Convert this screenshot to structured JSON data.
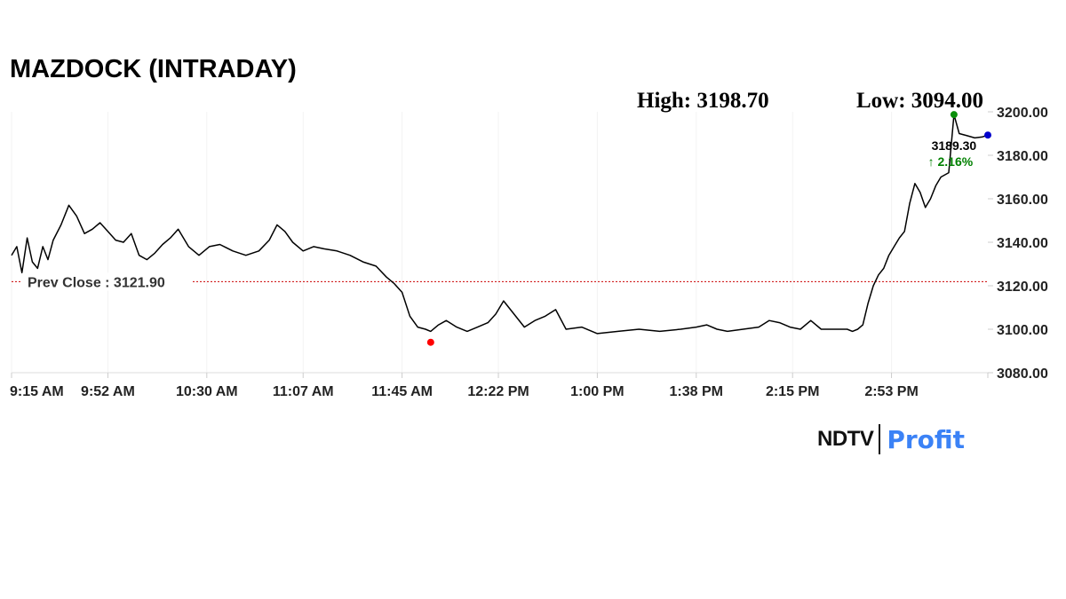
{
  "chart_title": "MAZDOCK (INTRADAY)",
  "high_label": "High: 3198.70",
  "low_label": "Low: 3094.00",
  "brand": {
    "ndtv": "NDTV",
    "profit": "Profit",
    "accent": "#3b82f6"
  },
  "chart_data": {
    "type": "line",
    "ylim": [
      3080,
      3205
    ],
    "y_ticks": [
      {
        "value": 3200,
        "label": "3200.00"
      },
      {
        "value": 3180,
        "label": "3180.00"
      },
      {
        "value": 3160,
        "label": "3160.00"
      },
      {
        "value": 3140,
        "label": "3140.00"
      },
      {
        "value": 3120,
        "label": "3120.00"
      },
      {
        "value": 3100,
        "label": "3100.00"
      },
      {
        "value": 3080,
        "label": "3080.00"
      }
    ],
    "x_range": [
      "9:15 AM",
      "3:30 PM"
    ],
    "x_ticks": [
      "9:15 AM",
      "9:52 AM",
      "10:30 AM",
      "11:07 AM",
      "11:45 AM",
      "12:22 PM",
      "1:00 PM",
      "1:38 PM",
      "2:15 PM",
      "2:53 PM"
    ],
    "prev_close": {
      "label": "Prev Close : 3121.90",
      "value": 3121.9,
      "color": "#cc0000"
    },
    "last_price": {
      "label": "3189.30",
      "change": "↑ 2.16%",
      "change_color": "#008000"
    },
    "high_marker": {
      "time": "3:17 PM",
      "value": 3198.7,
      "color": "#0a8f0a"
    },
    "low_marker": {
      "time": "11:56 AM",
      "value": 3094.0,
      "color": "#ff0000"
    },
    "last_marker": {
      "time": "3:30 PM",
      "value": 3189.3,
      "color": "#0000cc"
    },
    "line_color": "#000000",
    "series": [
      {
        "x": [
          "9:15 AM",
          "9:17 AM",
          "9:19 AM",
          "9:21 AM",
          "9:23 AM",
          "9:25 AM",
          "9:27 AM",
          "9:29 AM",
          "9:31 AM",
          "9:34 AM",
          "9:37 AM",
          "9:40 AM",
          "9:43 AM",
          "9:46 AM",
          "9:49 AM",
          "9:52 AM",
          "9:55 AM",
          "9:58 AM",
          "10:01 AM",
          "10:04 AM",
          "10:07 AM",
          "10:10 AM",
          "10:13 AM",
          "10:16 AM",
          "10:19 AM",
          "10:23 AM",
          "10:27 AM",
          "10:31 AM",
          "10:35 AM",
          "10:40 AM",
          "10:45 AM",
          "10:50 AM",
          "10:54 AM",
          "10:57 AM",
          "11:00 AM",
          "11:03 AM",
          "11:07 AM",
          "11:11 AM",
          "11:15 AM",
          "11:20 AM",
          "11:25 AM",
          "11:30 AM",
          "11:35 AM",
          "11:39 AM",
          "11:42 AM",
          "11:45 AM",
          "11:48 AM",
          "11:51 AM",
          "11:54 AM",
          "11:56 AM",
          "11:59 AM",
          "12:02 PM",
          "12:06 PM",
          "12:10 PM",
          "12:14 PM",
          "12:18 PM",
          "12:21 PM",
          "12:24 PM",
          "12:28 PM",
          "12:32 PM",
          "12:36 PM",
          "12:40 PM",
          "12:44 PM",
          "12:48 PM",
          "12:54 PM",
          "1:00 PM",
          "1:08 PM",
          "1:16 PM",
          "1:24 PM",
          "1:32 PM",
          "1:38 PM",
          "1:42 PM",
          "1:46 PM",
          "1:50 PM",
          "1:56 PM",
          "2:02 PM",
          "2:06 PM",
          "2:10 PM",
          "2:14 PM",
          "2:18 PM",
          "2:22 PM",
          "2:26 PM",
          "2:32 PM",
          "2:36 PM",
          "2:38 PM",
          "2:40 PM",
          "2:42 PM",
          "2:44 PM",
          "2:46 PM",
          "2:48 PM",
          "2:50 PM",
          "2:52 PM",
          "2:54 PM",
          "2:56 PM",
          "2:58 PM",
          "3:00 PM",
          "3:02 PM",
          "3:04 PM",
          "3:06 PM",
          "3:08 PM",
          "3:10 PM",
          "3:12 PM",
          "3:15 PM",
          "3:17 PM",
          "3:19 PM",
          "3:22 PM",
          "3:25 PM",
          "3:28 PM",
          "3:30 PM"
        ],
        "y": [
          3134,
          3138,
          3126,
          3142,
          3131,
          3128,
          3138,
          3132,
          3141,
          3148,
          3157,
          3152,
          3144,
          3146,
          3149,
          3145,
          3141,
          3140,
          3144,
          3134,
          3132,
          3135,
          3139,
          3142,
          3146,
          3138,
          3134,
          3138,
          3139,
          3136,
          3134,
          3136,
          3141,
          3148,
          3145,
          3140,
          3136,
          3138,
          3137,
          3136,
          3134,
          3131,
          3129,
          3124,
          3121,
          3117,
          3106,
          3101,
          3100,
          3099,
          3102,
          3104,
          3101,
          3099,
          3101,
          3103,
          3107,
          3113,
          3107,
          3101,
          3104,
          3106,
          3109,
          3100,
          3101,
          3098,
          3099,
          3100,
          3099,
          3100,
          3101,
          3102,
          3100,
          3099,
          3100,
          3101,
          3104,
          3103,
          3101,
          3100,
          3104,
          3100,
          3100,
          3100,
          3099,
          3100,
          3102,
          3112,
          3120,
          3125,
          3128,
          3134,
          3138,
          3142,
          3145,
          3158,
          3167,
          3163,
          3156,
          3160,
          3166,
          3170,
          3172,
          3198.7,
          3190,
          3189,
          3188,
          3188.5,
          3189.3
        ]
      }
    ]
  }
}
